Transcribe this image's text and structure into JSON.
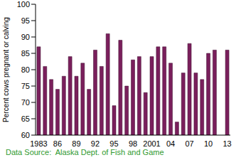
{
  "chart_data": {
    "type": "bar",
    "y_label": "Percent cows pregnant or calving",
    "source": "Data Source:  Alaska Dept. of Fish and Game",
    "categories": [
      "1983",
      null,
      null,
      "86",
      null,
      null,
      "89",
      null,
      null,
      "92",
      null,
      null,
      "95",
      null,
      null,
      "98",
      null,
      null,
      "2001",
      null,
      null,
      "04",
      null,
      null,
      "07",
      null,
      null,
      "10",
      null,
      null,
      "13"
    ],
    "values": [
      87,
      81,
      77,
      74,
      78,
      84,
      78,
      82,
      74,
      86,
      81,
      91,
      69,
      89,
      75,
      83,
      84,
      73,
      84,
      87,
      87,
      82,
      64,
      79,
      88,
      79,
      77,
      85,
      86,
      null,
      86
    ],
    "color": "#7a1f5c",
    "ylim": [
      60,
      100
    ],
    "yticks": [
      60,
      65,
      70,
      75,
      80,
      85,
      90,
      95,
      100
    ],
    "grid": false
  }
}
